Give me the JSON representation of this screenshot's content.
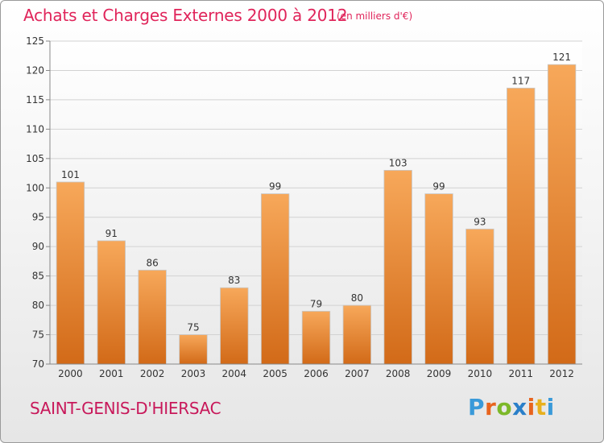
{
  "header": {
    "title": "Achats et Charges Externes 2000 à 2012",
    "subtitle": "(en milliers d'€)"
  },
  "footer": {
    "town": "SAINT-GENIS-D'HIERSAC",
    "logo": "Proxiti",
    "logo_colors": [
      "#3a9ad9",
      "#e8641e",
      "#7cb829",
      "#2a7fc9",
      "#e8641e",
      "#e8b01e",
      "#3a9ad9"
    ]
  },
  "chart_data": {
    "type": "bar",
    "categories": [
      "2000",
      "2001",
      "2002",
      "2003",
      "2004",
      "2005",
      "2006",
      "2007",
      "2008",
      "2009",
      "2010",
      "2011",
      "2012"
    ],
    "values": [
      101,
      91,
      86,
      75,
      83,
      99,
      79,
      80,
      103,
      99,
      93,
      117,
      121
    ],
    "title": "Achats et Charges Externes 2000 à 2012",
    "ylim": [
      70,
      125
    ],
    "yticks": [
      70,
      75,
      80,
      85,
      90,
      95,
      100,
      105,
      110,
      115,
      120,
      125
    ],
    "grid": true,
    "bar_color_top": "#f7a85a",
    "bar_color_bottom": "#d26a18"
  }
}
